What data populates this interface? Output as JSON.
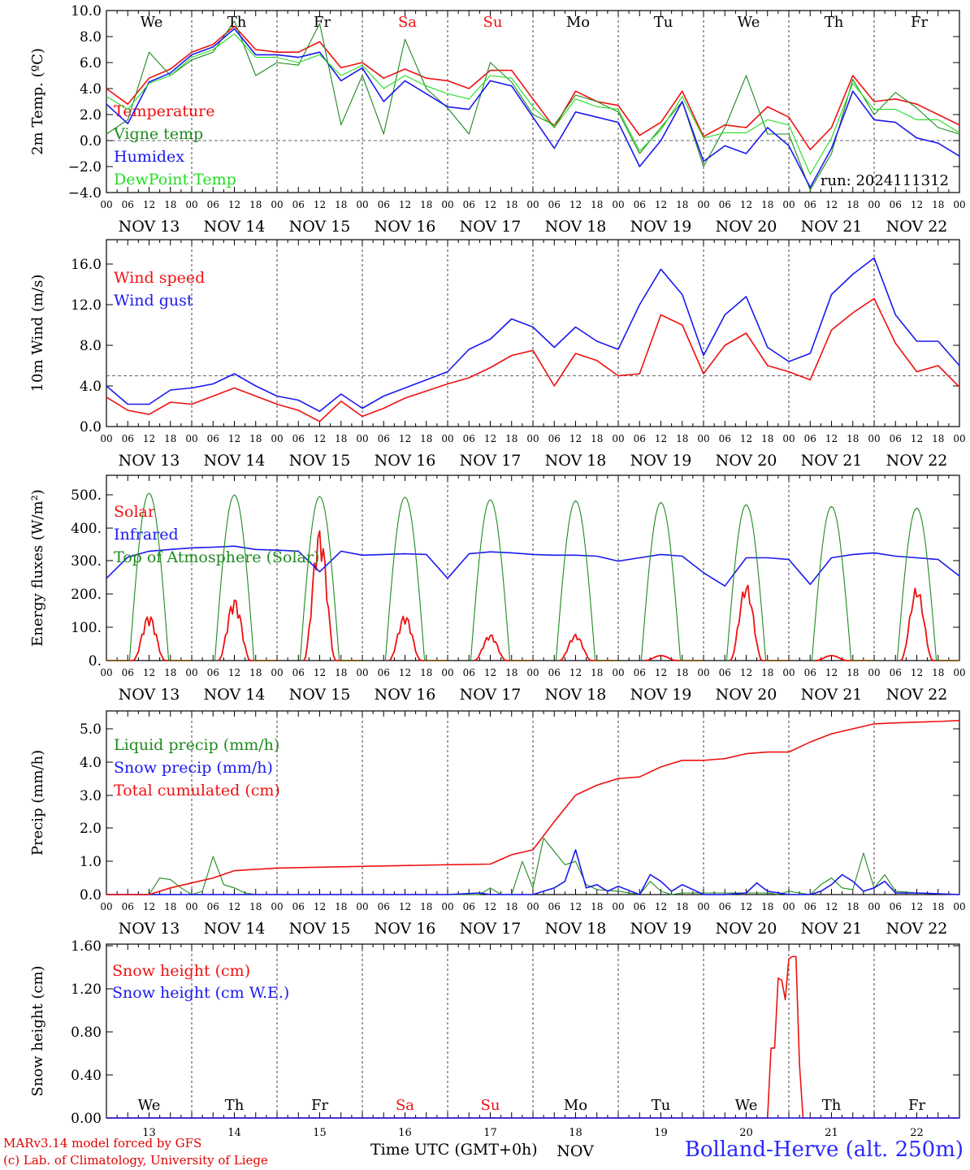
{
  "colors": {
    "temperature": "#ee1111",
    "vigne": "#1f8a1f",
    "humidex": "#1a1aee",
    "dewpoint": "#22dd22",
    "snowcm": "#ee1111",
    "snowwe": "#1a1aee",
    "weekday": "#000000",
    "weekend": "#ee1111"
  },
  "header": {
    "weekdays": [
      "We",
      "Th",
      "Fr",
      "Sa",
      "Su",
      "Mo",
      "Tu",
      "We",
      "Th",
      "Fr"
    ],
    "weekend_flags": [
      false,
      false,
      false,
      true,
      true,
      false,
      false,
      false,
      false,
      false
    ],
    "date_labels": [
      "NOV 13",
      "NOV 14",
      "NOV 15",
      "NOV 16",
      "NOV 17",
      "NOV 18",
      "NOV 19",
      "NOV 20",
      "NOV 21",
      "NOV 22"
    ],
    "hour_ticks": [
      "00",
      "06",
      "12",
      "18"
    ],
    "final_hour_tick": "00",
    "day_numbers": [
      "13",
      "14",
      "15",
      "16",
      "17",
      "18",
      "19",
      "20",
      "21",
      "22"
    ],
    "month_label": "NOV"
  },
  "footer": {
    "model": "MARv3.14 model forced by GFS",
    "credit": "(c) Lab. of Climatology, University of Liege",
    "time_label": "Time UTC (GMT+0h)",
    "station": "Bolland-Herve (alt. 250m)"
  },
  "chart_data": [
    {
      "type": "line",
      "ylabel": "2m Temp. (ºC)",
      "ylim": [
        -4,
        10
      ],
      "yticks": [
        "10.0",
        "8.0",
        "6.0",
        "4.0",
        "2.0",
        "0.0",
        "−2.0",
        "−4.0"
      ],
      "reference_line": 0,
      "grid": "vertical dashed at day boundaries",
      "annotation": "run: 2024111312",
      "x_unit": "hours since NOV 13 00 UTC",
      "series": [
        {
          "name": "Temperature",
          "color": "temperature",
          "x": [
            0,
            6,
            12,
            18,
            24,
            30,
            36,
            42,
            48,
            54,
            60,
            66,
            72,
            78,
            84,
            90,
            96,
            102,
            108,
            114,
            120,
            126,
            132,
            138,
            144,
            150,
            156,
            162,
            168,
            174,
            180,
            186,
            192,
            198,
            204,
            210,
            216,
            222,
            228,
            234,
            240
          ],
          "values": [
            4.0,
            2.8,
            4.8,
            5.5,
            6.8,
            7.4,
            8.8,
            7.0,
            6.8,
            6.8,
            7.6,
            5.6,
            6.0,
            4.8,
            5.5,
            4.8,
            4.6,
            4.0,
            5.4,
            5.4,
            3.2,
            1.0,
            3.8,
            3.0,
            2.7,
            0.4,
            1.4,
            3.8,
            0.3,
            1.2,
            1.0,
            2.6,
            1.8,
            -0.7,
            1.0,
            5.0,
            3.0,
            3.2,
            2.8,
            2.0,
            1.2
          ]
        },
        {
          "name": "Vigne temp",
          "color": "vigne",
          "x": [
            0,
            6,
            12,
            18,
            24,
            30,
            36,
            42,
            48,
            54,
            60,
            66,
            72,
            78,
            84,
            90,
            96,
            102,
            108,
            114,
            120,
            126,
            132,
            138,
            144,
            150,
            156,
            162,
            168,
            174,
            180,
            186,
            192,
            198,
            204,
            210,
            216,
            222,
            228,
            234,
            240
          ],
          "values": [
            0.5,
            1.6,
            6.8,
            5.0,
            6.2,
            6.8,
            9.2,
            5.0,
            6.0,
            5.8,
            9.0,
            1.2,
            5.0,
            0.5,
            7.8,
            4.0,
            2.5,
            0.5,
            6.0,
            4.5,
            2.0,
            1.2,
            3.5,
            3.0,
            2.2,
            -1.0,
            1.0,
            3.0,
            -2.0,
            1.0,
            5.0,
            0.5,
            0.5,
            -3.8,
            -1.0,
            4.7,
            2.0,
            3.7,
            2.5,
            1.0,
            0.5
          ]
        },
        {
          "name": "Humidex",
          "color": "humidex",
          "x": [
            0,
            6,
            12,
            18,
            24,
            30,
            36,
            42,
            48,
            54,
            60,
            66,
            72,
            78,
            84,
            90,
            96,
            102,
            108,
            114,
            120,
            126,
            132,
            138,
            144,
            150,
            156,
            162,
            168,
            174,
            180,
            186,
            192,
            198,
            204,
            210,
            216,
            222,
            228,
            234,
            240
          ],
          "values": [
            2.8,
            1.3,
            4.5,
            5.2,
            6.6,
            7.2,
            8.6,
            6.6,
            6.6,
            6.4,
            6.8,
            4.6,
            5.6,
            3.0,
            4.6,
            3.6,
            2.6,
            2.4,
            4.6,
            4.2,
            1.8,
            -0.6,
            2.2,
            1.8,
            1.4,
            -2.0,
            0.0,
            3.0,
            -1.6,
            -0.4,
            -1.0,
            1.0,
            -0.4,
            -3.6,
            -0.6,
            3.8,
            1.6,
            1.4,
            0.2,
            -0.2,
            -1.2
          ]
        },
        {
          "name": "DewPoint Temp",
          "color": "dewpoint",
          "x": [
            0,
            6,
            12,
            18,
            24,
            30,
            36,
            42,
            48,
            54,
            60,
            66,
            72,
            78,
            84,
            90,
            96,
            102,
            108,
            114,
            120,
            126,
            132,
            138,
            144,
            150,
            156,
            162,
            168,
            174,
            180,
            186,
            192,
            198,
            204,
            210,
            216,
            222,
            228,
            234,
            240
          ],
          "values": [
            3.4,
            2.4,
            4.4,
            5.0,
            6.4,
            7.0,
            8.2,
            6.4,
            6.4,
            6.0,
            6.6,
            5.0,
            5.8,
            4.0,
            5.0,
            4.2,
            3.6,
            3.2,
            5.0,
            4.8,
            2.6,
            1.0,
            3.2,
            2.6,
            2.4,
            -0.8,
            0.8,
            3.4,
            0.2,
            0.6,
            0.6,
            1.6,
            1.2,
            -2.6,
            0.2,
            4.4,
            2.4,
            2.4,
            1.6,
            1.6,
            0.6
          ]
        }
      ]
    },
    {
      "type": "line",
      "ylabel": "10m Wind (m/s)",
      "ylim": [
        0,
        18
      ],
      "yticks": [
        "16.0",
        "12.0",
        "8.0",
        "4.0",
        "0.0"
      ],
      "reference_line": 5,
      "x_unit": "hours since NOV 13 00 UTC",
      "series": [
        {
          "name": "Wind speed",
          "color": "temperature",
          "x": [
            0,
            6,
            12,
            18,
            24,
            30,
            36,
            42,
            48,
            54,
            60,
            66,
            72,
            78,
            84,
            90,
            96,
            102,
            108,
            114,
            120,
            126,
            132,
            138,
            144,
            150,
            156,
            162,
            168,
            174,
            180,
            186,
            192,
            198,
            204,
            210,
            216,
            222,
            228,
            234,
            240
          ],
          "values": [
            2.9,
            1.6,
            1.2,
            2.4,
            2.2,
            3.0,
            3.8,
            3.0,
            2.2,
            1.6,
            0.5,
            2.5,
            1.0,
            1.8,
            2.8,
            3.5,
            4.2,
            4.8,
            5.8,
            7.0,
            7.5,
            4.0,
            7.2,
            6.5,
            5.0,
            5.2,
            11.0,
            10.0,
            5.2,
            8.0,
            9.2,
            6.0,
            5.4,
            4.6,
            9.5,
            11.2,
            12.6,
            8.2,
            5.4,
            6.0,
            3.9
          ]
        },
        {
          "name": "Wind gust",
          "color": "humidex",
          "x": [
            0,
            6,
            12,
            18,
            24,
            30,
            36,
            42,
            48,
            54,
            60,
            66,
            72,
            78,
            84,
            90,
            96,
            102,
            108,
            114,
            120,
            126,
            132,
            138,
            144,
            150,
            156,
            162,
            168,
            174,
            180,
            186,
            192,
            198,
            204,
            210,
            216,
            222,
            228,
            234,
            240
          ],
          "values": [
            4.0,
            2.2,
            2.2,
            3.6,
            3.8,
            4.2,
            5.2,
            4.0,
            3.0,
            2.6,
            1.5,
            3.2,
            1.8,
            3.0,
            3.8,
            4.6,
            5.4,
            7.6,
            8.6,
            10.6,
            9.8,
            7.8,
            9.8,
            8.4,
            7.6,
            12.0,
            15.5,
            13.0,
            7.0,
            11.0,
            12.8,
            7.8,
            6.4,
            7.2,
            13.0,
            15.0,
            16.6,
            11.0,
            8.4,
            8.4,
            6.0
          ]
        }
      ]
    },
    {
      "type": "line",
      "ylabel": "Energy fluxes (W/m²)",
      "ylim": [
        0,
        550
      ],
      "yticks": [
        "500.",
        "400.",
        "300.",
        "200.",
        "100.",
        "0."
      ],
      "x_unit": "hours since NOV 13 00 UTC",
      "series": [
        {
          "name": "Solar",
          "color": "temperature",
          "day_peaks": [
            140,
            190,
            400,
            140,
            80,
            80,
            15,
            235,
            15,
            225
          ]
        },
        {
          "name": "Infrared",
          "color": "humidex",
          "x": [
            0,
            6,
            12,
            18,
            24,
            30,
            36,
            42,
            48,
            54,
            60,
            66,
            72,
            78,
            84,
            90,
            96,
            102,
            108,
            114,
            120,
            126,
            132,
            138,
            144,
            150,
            156,
            162,
            168,
            174,
            180,
            186,
            192,
            198,
            204,
            210,
            216,
            222,
            228,
            234,
            240
          ],
          "values": [
            248,
            312,
            330,
            335,
            340,
            342,
            345,
            335,
            333,
            330,
            268,
            330,
            318,
            320,
            322,
            320,
            248,
            322,
            328,
            325,
            320,
            318,
            318,
            315,
            300,
            310,
            320,
            315,
            265,
            225,
            310,
            310,
            305,
            230,
            310,
            320,
            325,
            315,
            310,
            305,
            255
          ]
        },
        {
          "name": "Top of Atmosphere (Solar)",
          "color": "vigne",
          "day_peaks": [
            505,
            500,
            495,
            493,
            485,
            482,
            477,
            470,
            465,
            460
          ]
        }
      ]
    },
    {
      "type": "line",
      "ylabel": "Precip (mm/h)",
      "ylim": [
        0,
        5.5
      ],
      "yticks": [
        "5.0",
        "4.0",
        "3.0",
        "2.0",
        "1.0",
        "0.0"
      ],
      "x_unit": "hours since NOV 13 00 UTC",
      "series": [
        {
          "name": "Liquid precip (mm/h)",
          "color": "vigne",
          "x": [
            0,
            12,
            15,
            18,
            21,
            24,
            27,
            30,
            33,
            36,
            39,
            42,
            48,
            72,
            96,
            105,
            108,
            111,
            114,
            117,
            120,
            123,
            126,
            129,
            132,
            135,
            138,
            144,
            150,
            153,
            156,
            159,
            162,
            168,
            174,
            180,
            186,
            189,
            192,
            195,
            198,
            201,
            204,
            207,
            210,
            213,
            216,
            219,
            222,
            228,
            240
          ],
          "values": [
            0,
            0,
            0.5,
            0.45,
            0.2,
            0,
            0.1,
            1.15,
            0.3,
            0.2,
            0.05,
            0,
            0,
            0,
            0,
            0,
            0.2,
            0,
            0,
            1.0,
            0.2,
            1.7,
            1.3,
            0.9,
            1.0,
            0.3,
            0.15,
            0.1,
            0,
            0.4,
            0.1,
            0,
            0.05,
            0.05,
            0.05,
            0.05,
            0.05,
            0,
            0.1,
            0.05,
            0,
            0.3,
            0.5,
            0.2,
            0.15,
            1.25,
            0.2,
            0.6,
            0.1,
            0.05,
            0
          ]
        },
        {
          "name": "Snow precip (mm/h)",
          "color": "humidex",
          "x": [
            0,
            48,
            96,
            105,
            108,
            111,
            114,
            117,
            120,
            123,
            126,
            129,
            132,
            135,
            138,
            141,
            144,
            150,
            153,
            156,
            159,
            162,
            168,
            174,
            180,
            183,
            186,
            192,
            198,
            201,
            204,
            207,
            210,
            213,
            216,
            219,
            222,
            228,
            240
          ],
          "values": [
            0,
            0,
            0,
            0.05,
            0,
            0,
            0,
            0,
            0,
            0.1,
            0.2,
            0.4,
            1.35,
            0.2,
            0.3,
            0.1,
            0.25,
            0,
            0.6,
            0.4,
            0.1,
            0.3,
            0,
            0,
            0.05,
            0.35,
            0.1,
            0,
            0,
            0.1,
            0.3,
            0.6,
            0.4,
            0.1,
            0.2,
            0.4,
            0.05,
            0.05,
            0
          ]
        },
        {
          "name": "Total cumulated (cm)",
          "color": "temperature",
          "x": [
            0,
            12,
            18,
            24,
            30,
            36,
            48,
            72,
            96,
            108,
            114,
            120,
            126,
            132,
            138,
            144,
            150,
            156,
            162,
            168,
            174,
            180,
            186,
            192,
            198,
            204,
            210,
            216,
            222,
            228,
            234,
            240
          ],
          "values": [
            0,
            0,
            0.2,
            0.35,
            0.5,
            0.72,
            0.8,
            0.85,
            0.9,
            0.92,
            1.2,
            1.35,
            2.2,
            3.0,
            3.3,
            3.5,
            3.55,
            3.85,
            4.05,
            4.05,
            4.1,
            4.25,
            4.3,
            4.3,
            4.6,
            4.85,
            5.0,
            5.15,
            5.18,
            5.2,
            5.22,
            5.25
          ]
        }
      ]
    },
    {
      "type": "line",
      "ylabel": "Snow height (cm)",
      "ylim": [
        0,
        1.6
      ],
      "yticks": [
        "1.60",
        "1.20",
        "0.80",
        "0.40",
        "0.00"
      ],
      "x_unit": "hours since NOV 13 00 UTC",
      "series": [
        {
          "name": "Snow height (cm)",
          "color": "snowcm",
          "x": [
            0,
            186,
            187,
            188,
            189,
            190,
            191,
            192,
            193,
            194,
            195,
            196,
            197,
            198,
            240
          ],
          "values": [
            0,
            0,
            0.65,
            0.65,
            1.3,
            1.28,
            1.1,
            1.48,
            1.5,
            1.5,
            0.5,
            0,
            0,
            0,
            0
          ]
        },
        {
          "name": "Snow height (cm W.E.)",
          "color": "snowwe",
          "x": [
            0,
            240
          ],
          "values": [
            0,
            0
          ]
        }
      ]
    }
  ]
}
